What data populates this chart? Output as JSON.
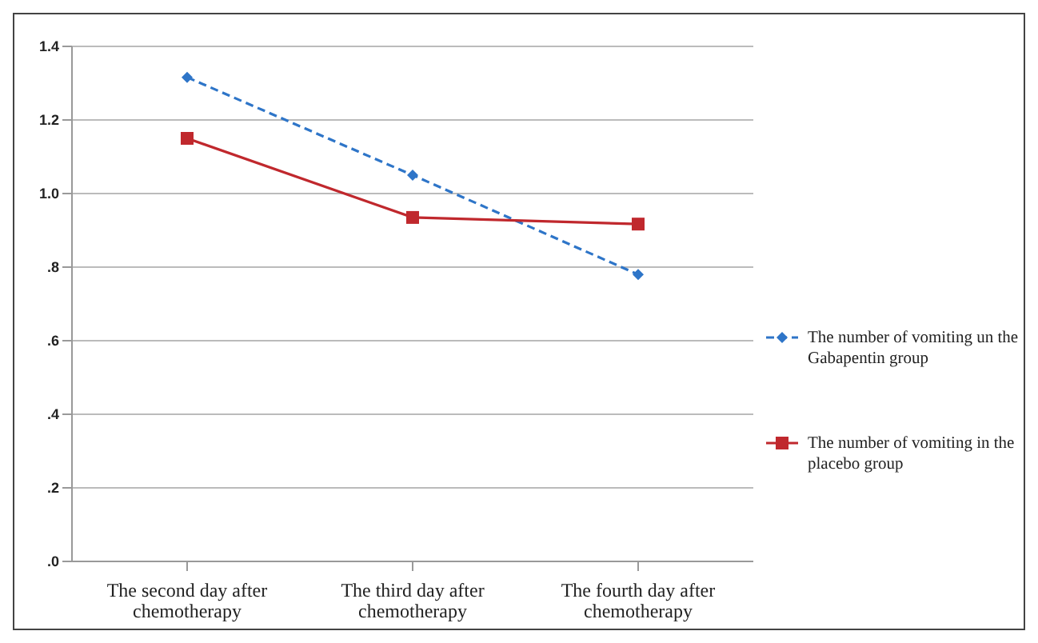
{
  "chart_data": {
    "type": "line",
    "categories": [
      "The second day after chemotherapy",
      "The third day after chemotherapy",
      "The fourth day after chemotherapy"
    ],
    "series": [
      {
        "name": "The number of vomiting un the Gabapentin group",
        "color": "#2e75c8",
        "values": [
          1.316,
          1.05,
          0.78
        ],
        "marker": "diamond",
        "line_style": "dashed"
      },
      {
        "name": "The number of vomiting in the placebo group",
        "color": "#c0282d",
        "values": [
          1.15,
          0.935,
          0.917
        ],
        "marker": "square",
        "line_style": "solid"
      }
    ],
    "ylim": [
      0,
      1.4
    ],
    "yticks": [
      {
        "value": 0,
        "label": ".0"
      },
      {
        "value": 0.2,
        "label": ".2"
      },
      {
        "value": 0.4,
        "label": ".4"
      },
      {
        "value": 0.6,
        "label": ".6"
      },
      {
        "value": 0.8,
        "label": ".8"
      },
      {
        "value": 1.0,
        "label": "1.0"
      },
      {
        "value": 1.2,
        "label": "1.2"
      },
      {
        "value": 1.4,
        "label": "1.4"
      }
    ],
    "grid": "y",
    "legend": "right"
  }
}
